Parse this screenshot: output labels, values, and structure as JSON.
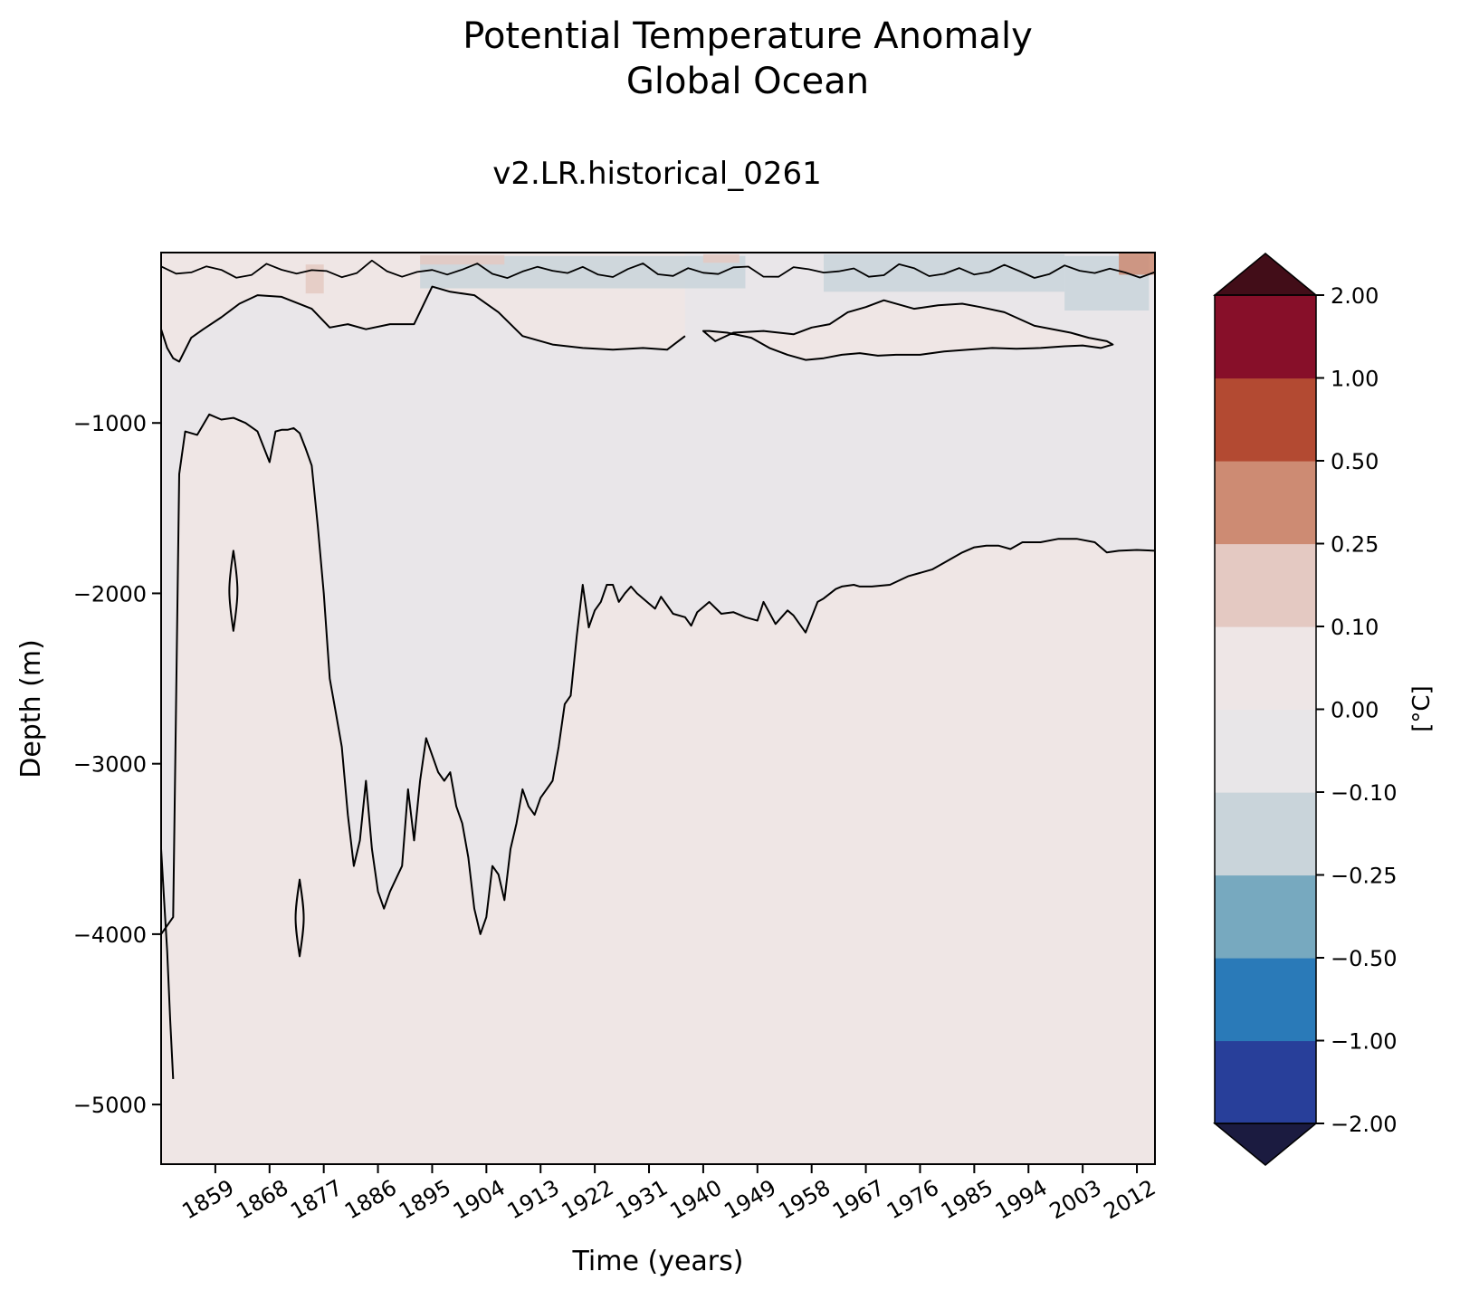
{
  "chart_data": {
    "type": "heatmap",
    "subtype": "filled-contour (depth vs time Hovmöller)",
    "title": "Potential Temperature Anomaly",
    "subtitle": "Global Ocean",
    "run_label": "v2.LR.historical_0261",
    "xlabel": "Time (years)",
    "ylabel": "Depth (m)",
    "xlim": [
      1850,
      2015
    ],
    "ylim": [
      -5350,
      0
    ],
    "x_ticks": [
      1859,
      1868,
      1877,
      1886,
      1895,
      1904,
      1913,
      1922,
      1931,
      1940,
      1949,
      1958,
      1967,
      1976,
      1985,
      1994,
      2003,
      2012
    ],
    "y_ticks": [
      -1000,
      -2000,
      -3000,
      -4000,
      -5000
    ],
    "y_tick_labels": [
      "−1000",
      "−2000",
      "−3000",
      "−4000",
      "−5000"
    ],
    "colorbar": {
      "label": "[°C]",
      "levels": [
        -2.0,
        -1.0,
        -0.5,
        -0.25,
        -0.1,
        0.0,
        0.1,
        0.25,
        0.5,
        1.0,
        2.0
      ],
      "tick_labels": [
        "−2.00",
        "−1.00",
        "−0.50",
        "−0.25",
        "−0.10",
        "0.00",
        "0.10",
        "0.25",
        "0.50",
        "1.00",
        "2.00"
      ],
      "colors": [
        "#283f9a",
        "#2a7ab8",
        "#77a9bf",
        "#c9d4da",
        "#e8e6e8",
        "#eee6e6",
        "#e4c9c2",
        "#cd8b73",
        "#b34a32",
        "#870f29"
      ],
      "under_color": "#1b1b40",
      "over_color": "#420d18",
      "extend": "both"
    },
    "background_anomaly_color": "#efe6e5",
    "near_zero_color": "#e9e6e9",
    "zero_contour_boundary_main": {
      "description": "boundary between slightly cool (upper/middle) and slightly warm (deep) water",
      "x": [
        1850,
        1852,
        1853,
        1854,
        1856,
        1858,
        1860,
        1862,
        1864,
        1866,
        1868,
        1869,
        1870,
        1871,
        1872,
        1873,
        1874,
        1875,
        1876,
        1877,
        1878,
        1879,
        1880,
        1881,
        1882,
        1883,
        1884,
        1885,
        1886,
        1887,
        1888,
        1890,
        1891,
        1892,
        1893,
        1894,
        1896,
        1897,
        1898,
        1899,
        1900,
        1901,
        1902,
        1903,
        1904,
        1905,
        1906,
        1907,
        1908,
        1909,
        1910,
        1911,
        1912,
        1913,
        1914,
        1915,
        1916,
        1917,
        1918,
        1919,
        1920,
        1921,
        1922,
        1923,
        1924,
        1925,
        1926,
        1927,
        1928,
        1929,
        1930,
        1931,
        1932,
        1933,
        1935,
        1937,
        1938,
        1939,
        1941,
        1943,
        1945,
        1947,
        1949,
        1950,
        1952,
        1954,
        1955,
        1957,
        1959,
        1960,
        1962,
        1963,
        1965,
        1966,
        1968,
        1971,
        1974,
        1978,
        1980,
        1983,
        1985,
        1987,
        1989,
        1991,
        1993,
        1996,
        1999,
        2002,
        2005,
        2007,
        2009,
        2012,
        2015
      ],
      "depth": [
        -4000,
        -3900,
        -1300,
        -1050,
        -1070,
        -950,
        -980,
        -970,
        -1000,
        -1050,
        -1230,
        -1050,
        -1040,
        -1040,
        -1030,
        -1060,
        -1150,
        -1250,
        -1600,
        -2000,
        -2500,
        -2700,
        -2900,
        -3300,
        -3600,
        -3450,
        -3100,
        -3500,
        -3750,
        -3850,
        -3750,
        -3600,
        -3150,
        -3450,
        -3100,
        -2850,
        -3050,
        -3100,
        -3050,
        -3250,
        -3350,
        -3550,
        -3850,
        -4000,
        -3900,
        -3600,
        -3650,
        -3800,
        -3500,
        -3350,
        -3150,
        -3250,
        -3300,
        -3200,
        -3150,
        -3100,
        -2900,
        -2650,
        -2600,
        -2250,
        -1950,
        -2200,
        -2100,
        -2050,
        -1950,
        -1950,
        -2050,
        -2000,
        -1960,
        -2000,
        -2030,
        -2060,
        -2090,
        -2020,
        -2120,
        -2140,
        -2190,
        -2110,
        -2050,
        -2120,
        -2110,
        -2140,
        -2160,
        -2050,
        -2180,
        -2100,
        -2130,
        -2230,
        -2050,
        -2030,
        -1975,
        -1960,
        -1950,
        -1960,
        -1960,
        -1950,
        -1900,
        -1860,
        -1820,
        -1760,
        -1730,
        -1720,
        -1720,
        -1740,
        -1700,
        -1700,
        -1680,
        -1680,
        -1700,
        -1760,
        -1750,
        -1745,
        -1750
      ]
    },
    "zero_contour_boundary_upper": {
      "description": "lower edge of wavy near-surface zero contour (upper 600 m)",
      "x": [
        1850,
        1851,
        1852,
        1853,
        1855,
        1857,
        1860,
        1863,
        1866,
        1870,
        1875,
        1878,
        1881,
        1884,
        1888,
        1892,
        1895,
        1898,
        1902,
        1906,
        1910,
        1915,
        1920,
        1925,
        1930,
        1934,
        1937
      ],
      "depth": [
        -450,
        -560,
        -620,
        -640,
        -500,
        -450,
        -380,
        -300,
        -250,
        -260,
        -330,
        -440,
        -420,
        -450,
        -420,
        -420,
        -200,
        -230,
        -250,
        -350,
        -490,
        -540,
        -560,
        -570,
        -560,
        -570,
        -490
      ]
    },
    "warm_lens": {
      "description": "closed zero contour of slightly warm water at ~300–600 m depth",
      "x": [
        1940,
        1942,
        1945,
        1950,
        1955,
        1958,
        1961,
        1964,
        1967,
        1970,
        1975,
        1979,
        1983,
        1986,
        1990,
        1995,
        2001,
        2004,
        2007,
        2008,
        2006,
        2003,
        2000,
        1996,
        1992,
        1988,
        1984,
        1980,
        1976,
        1972,
        1969,
        1966,
        1963,
        1960,
        1957,
        1954,
        1951,
        1948,
        1944,
        1941
      ],
      "depth": [
        -460,
        -520,
        -470,
        -460,
        -480,
        -440,
        -420,
        -350,
        -320,
        -280,
        -330,
        -310,
        -300,
        -320,
        -350,
        -430,
        -470,
        -500,
        -520,
        -540,
        -560,
        -545,
        -550,
        -560,
        -565,
        -560,
        -570,
        -580,
        -600,
        -600,
        -605,
        -590,
        -600,
        -620,
        -630,
        -600,
        -560,
        -500,
        -470,
        -460
      ]
    },
    "surface_cool_patches": [
      {
        "x_range": [
          1893,
          1947
        ],
        "depth_range": [
          -20,
          -210
        ],
        "value_range": "−0.25 to −0.10"
      },
      {
        "x_range": [
          1960,
          2000
        ],
        "depth_range": [
          -10,
          -230
        ],
        "value_range": "−0.25 to −0.10"
      },
      {
        "x_range": [
          2000,
          2014
        ],
        "depth_range": [
          -20,
          -340
        ],
        "value_range": "−0.25 to −0.10"
      }
    ],
    "surface_warm_patches": [
      {
        "x_range": [
          1874,
          1877
        ],
        "depth_range": [
          -70,
          -240
        ],
        "value_range": "0.10 to 0.25"
      },
      {
        "x_range": [
          1893,
          1907
        ],
        "depth_range": [
          -15,
          -70
        ],
        "value_range": "0.10 to 0.25"
      },
      {
        "x_range": [
          1940,
          1946
        ],
        "depth_range": [
          -10,
          -60
        ],
        "value_range": "0.10 to 0.25"
      },
      {
        "x_range": [
          2009,
          2015
        ],
        "depth_range": [
          0,
          -130
        ],
        "value_range": "0.25 to 0.50"
      }
    ],
    "isolated_contours": [
      {
        "description": "narrow closed loop",
        "x_center": 1862,
        "depth_range": [
          -1750,
          -2220
        ]
      },
      {
        "description": "narrow closed loop",
        "x_center": 1873,
        "depth_range": [
          -3680,
          -4130
        ]
      },
      {
        "description": "left-edge contour",
        "x": [
          1850,
          1850.5,
          1851,
          1851.5,
          1852
        ],
        "depth": [
          -3500,
          -3800,
          -4100,
          -4500,
          -4850
        ]
      }
    ]
  }
}
